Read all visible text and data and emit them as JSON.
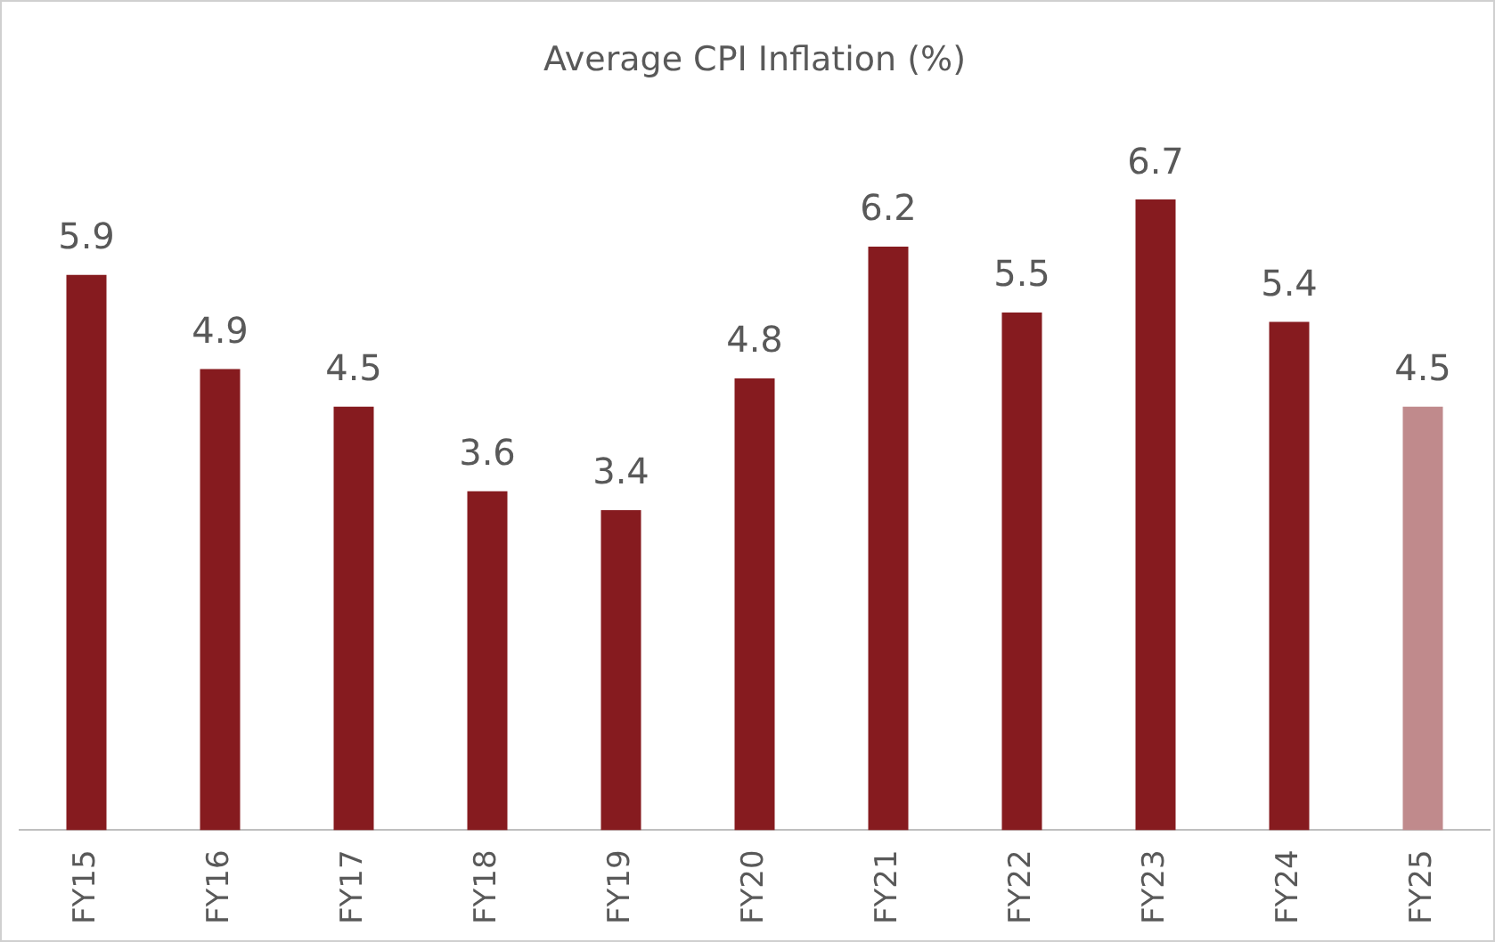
{
  "chart_data": {
    "type": "bar",
    "title": "Average CPI Inflation (%)",
    "categories": [
      "FY15",
      "FY16",
      "FY17",
      "FY18",
      "FY19",
      "FY20",
      "FY21",
      "FY22",
      "FY23",
      "FY24",
      "FY25"
    ],
    "values": [
      5.9,
      4.9,
      4.5,
      3.6,
      3.4,
      4.8,
      6.2,
      5.5,
      6.7,
      5.4,
      4.5
    ],
    "colors": [
      "#861b1f",
      "#861b1f",
      "#861b1f",
      "#861b1f",
      "#861b1f",
      "#861b1f",
      "#861b1f",
      "#861b1f",
      "#861b1f",
      "#861b1f",
      "#c08a8c"
    ],
    "data_labels": true,
    "grid": false,
    "legend": false,
    "tick_labels": "x"
  }
}
